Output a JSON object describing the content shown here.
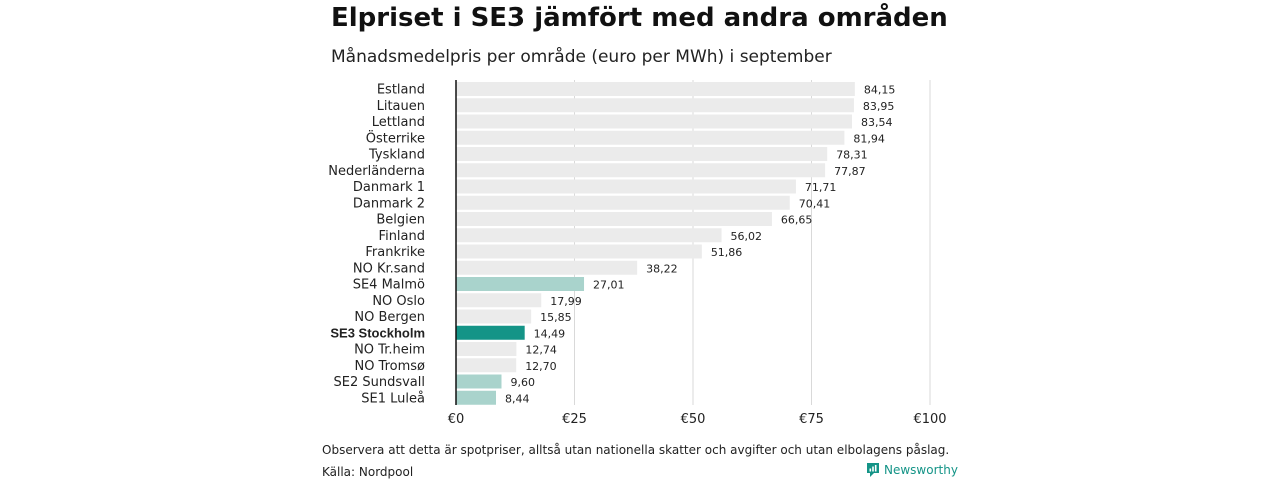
{
  "header": {
    "title": "Elpriset i SE3 jämfört med andra områden",
    "subtitle": "Månadsmedelpris per område (euro per MWh) i september"
  },
  "footer": {
    "note": "Observera att detta är spotpriser, alltså utan nationella skatter och avgifter och utan elbolagens påslag.",
    "source": "Källa: Nordpool",
    "brand": "Newsworthy"
  },
  "colors": {
    "default_bar": "#ebebeb",
    "se_bar": "#a9d3cc",
    "highlight_bar": "#149487",
    "brand": "#149487"
  },
  "icons": {
    "brand_logo": "newsworthy-logo-icon"
  },
  "chart_data": {
    "type": "bar",
    "orientation": "horizontal",
    "title": "Elpriset i SE3 jämfört med andra områden",
    "subtitle": "Månadsmedelpris per område (euro per MWh) i september",
    "categories": [
      "Estland",
      "Litauen",
      "Lettland",
      "Österrike",
      "Tyskland",
      "Nederländerna",
      "Danmark 1",
      "Danmark 2",
      "Belgien",
      "Finland",
      "Frankrike",
      "NO Kr.sand",
      "SE4 Malmö",
      "NO Oslo",
      "NO Bergen",
      "SE3 Stockholm",
      "NO Tr.heim",
      "NO Tromsø",
      "SE2 Sundsvall",
      "SE1 Luleå"
    ],
    "values": [
      84.15,
      83.95,
      83.54,
      81.94,
      78.31,
      77.87,
      71.71,
      70.41,
      66.65,
      56.02,
      51.86,
      38.22,
      27.01,
      17.99,
      15.85,
      14.49,
      12.74,
      12.7,
      9.6,
      8.44
    ],
    "value_labels": [
      "84,15",
      "83,95",
      "83,54",
      "81,94",
      "78,31",
      "77,87",
      "71,71",
      "70,41",
      "66,65",
      "56,02",
      "51,86",
      "38,22",
      "27,01",
      "17,99",
      "15,85",
      "14,49",
      "12,74",
      "12,70",
      "9,60",
      "8,44"
    ],
    "highlight": "SE3 Stockholm",
    "secondary_highlight": [
      "SE4 Malmö",
      "SE2 Sundsvall",
      "SE1 Luleå"
    ],
    "xlim": [
      0,
      100
    ],
    "xticks": [
      0,
      25,
      50,
      75,
      100
    ],
    "xtick_labels": [
      "€0",
      "€25",
      "€50",
      "€75",
      "€100"
    ],
    "grid": "vertical"
  }
}
